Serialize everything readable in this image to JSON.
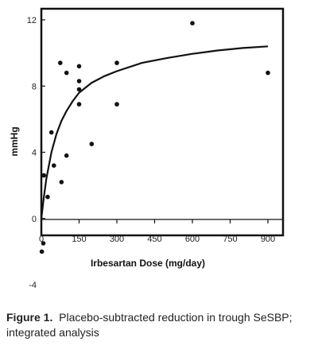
{
  "chart_data": {
    "type": "scatter",
    "title": "",
    "xlabel": "Irbesartan Dose (mg/day)",
    "ylabel": "mmHg",
    "xlim": [
      0,
      900
    ],
    "ylim": [
      -4,
      12
    ],
    "xticks": [
      "0",
      "150",
      "300",
      "450",
      "600",
      "750",
      "900"
    ],
    "yticks": [
      "-4",
      "0",
      "4",
      "8",
      "12"
    ],
    "x_tick_values": [
      0,
      150,
      300,
      450,
      600,
      750,
      900
    ],
    "y_tick_values": [
      -4,
      0,
      4,
      8,
      12
    ],
    "grid": false,
    "points": [
      {
        "x": 2,
        "y": -2.0
      },
      {
        "x": 8,
        "y": -1.5
      },
      {
        "x": 10,
        "y": 2.6
      },
      {
        "x": 25,
        "y": 1.3
      },
      {
        "x": 40,
        "y": 5.2
      },
      {
        "x": 50,
        "y": 3.2
      },
      {
        "x": 75,
        "y": 9.4
      },
      {
        "x": 80,
        "y": 2.2
      },
      {
        "x": 100,
        "y": 8.8
      },
      {
        "x": 100,
        "y": 3.8
      },
      {
        "x": 150,
        "y": 9.2
      },
      {
        "x": 150,
        "y": 8.3
      },
      {
        "x": 150,
        "y": 7.8
      },
      {
        "x": 150,
        "y": 6.9
      },
      {
        "x": 200,
        "y": 4.5
      },
      {
        "x": 300,
        "y": 9.4
      },
      {
        "x": 300,
        "y": 6.9
      },
      {
        "x": 600,
        "y": 11.8
      },
      {
        "x": 900,
        "y": 8.8
      }
    ],
    "fit_curve": {
      "name": "",
      "x": [
        0,
        10,
        20,
        40,
        60,
        80,
        100,
        125,
        150,
        200,
        250,
        300,
        400,
        500,
        600,
        700,
        800,
        900
      ],
      "y": [
        0,
        1.3,
        2.4,
        4.0,
        5.1,
        5.9,
        6.5,
        7.1,
        7.6,
        8.2,
        8.6,
        8.9,
        9.4,
        9.7,
        9.95,
        10.15,
        10.3,
        10.4
      ]
    }
  },
  "caption": {
    "label": "Figure 1.",
    "text": "Placebo-subtracted reduction in trough SeSBP; integrated analysis"
  }
}
